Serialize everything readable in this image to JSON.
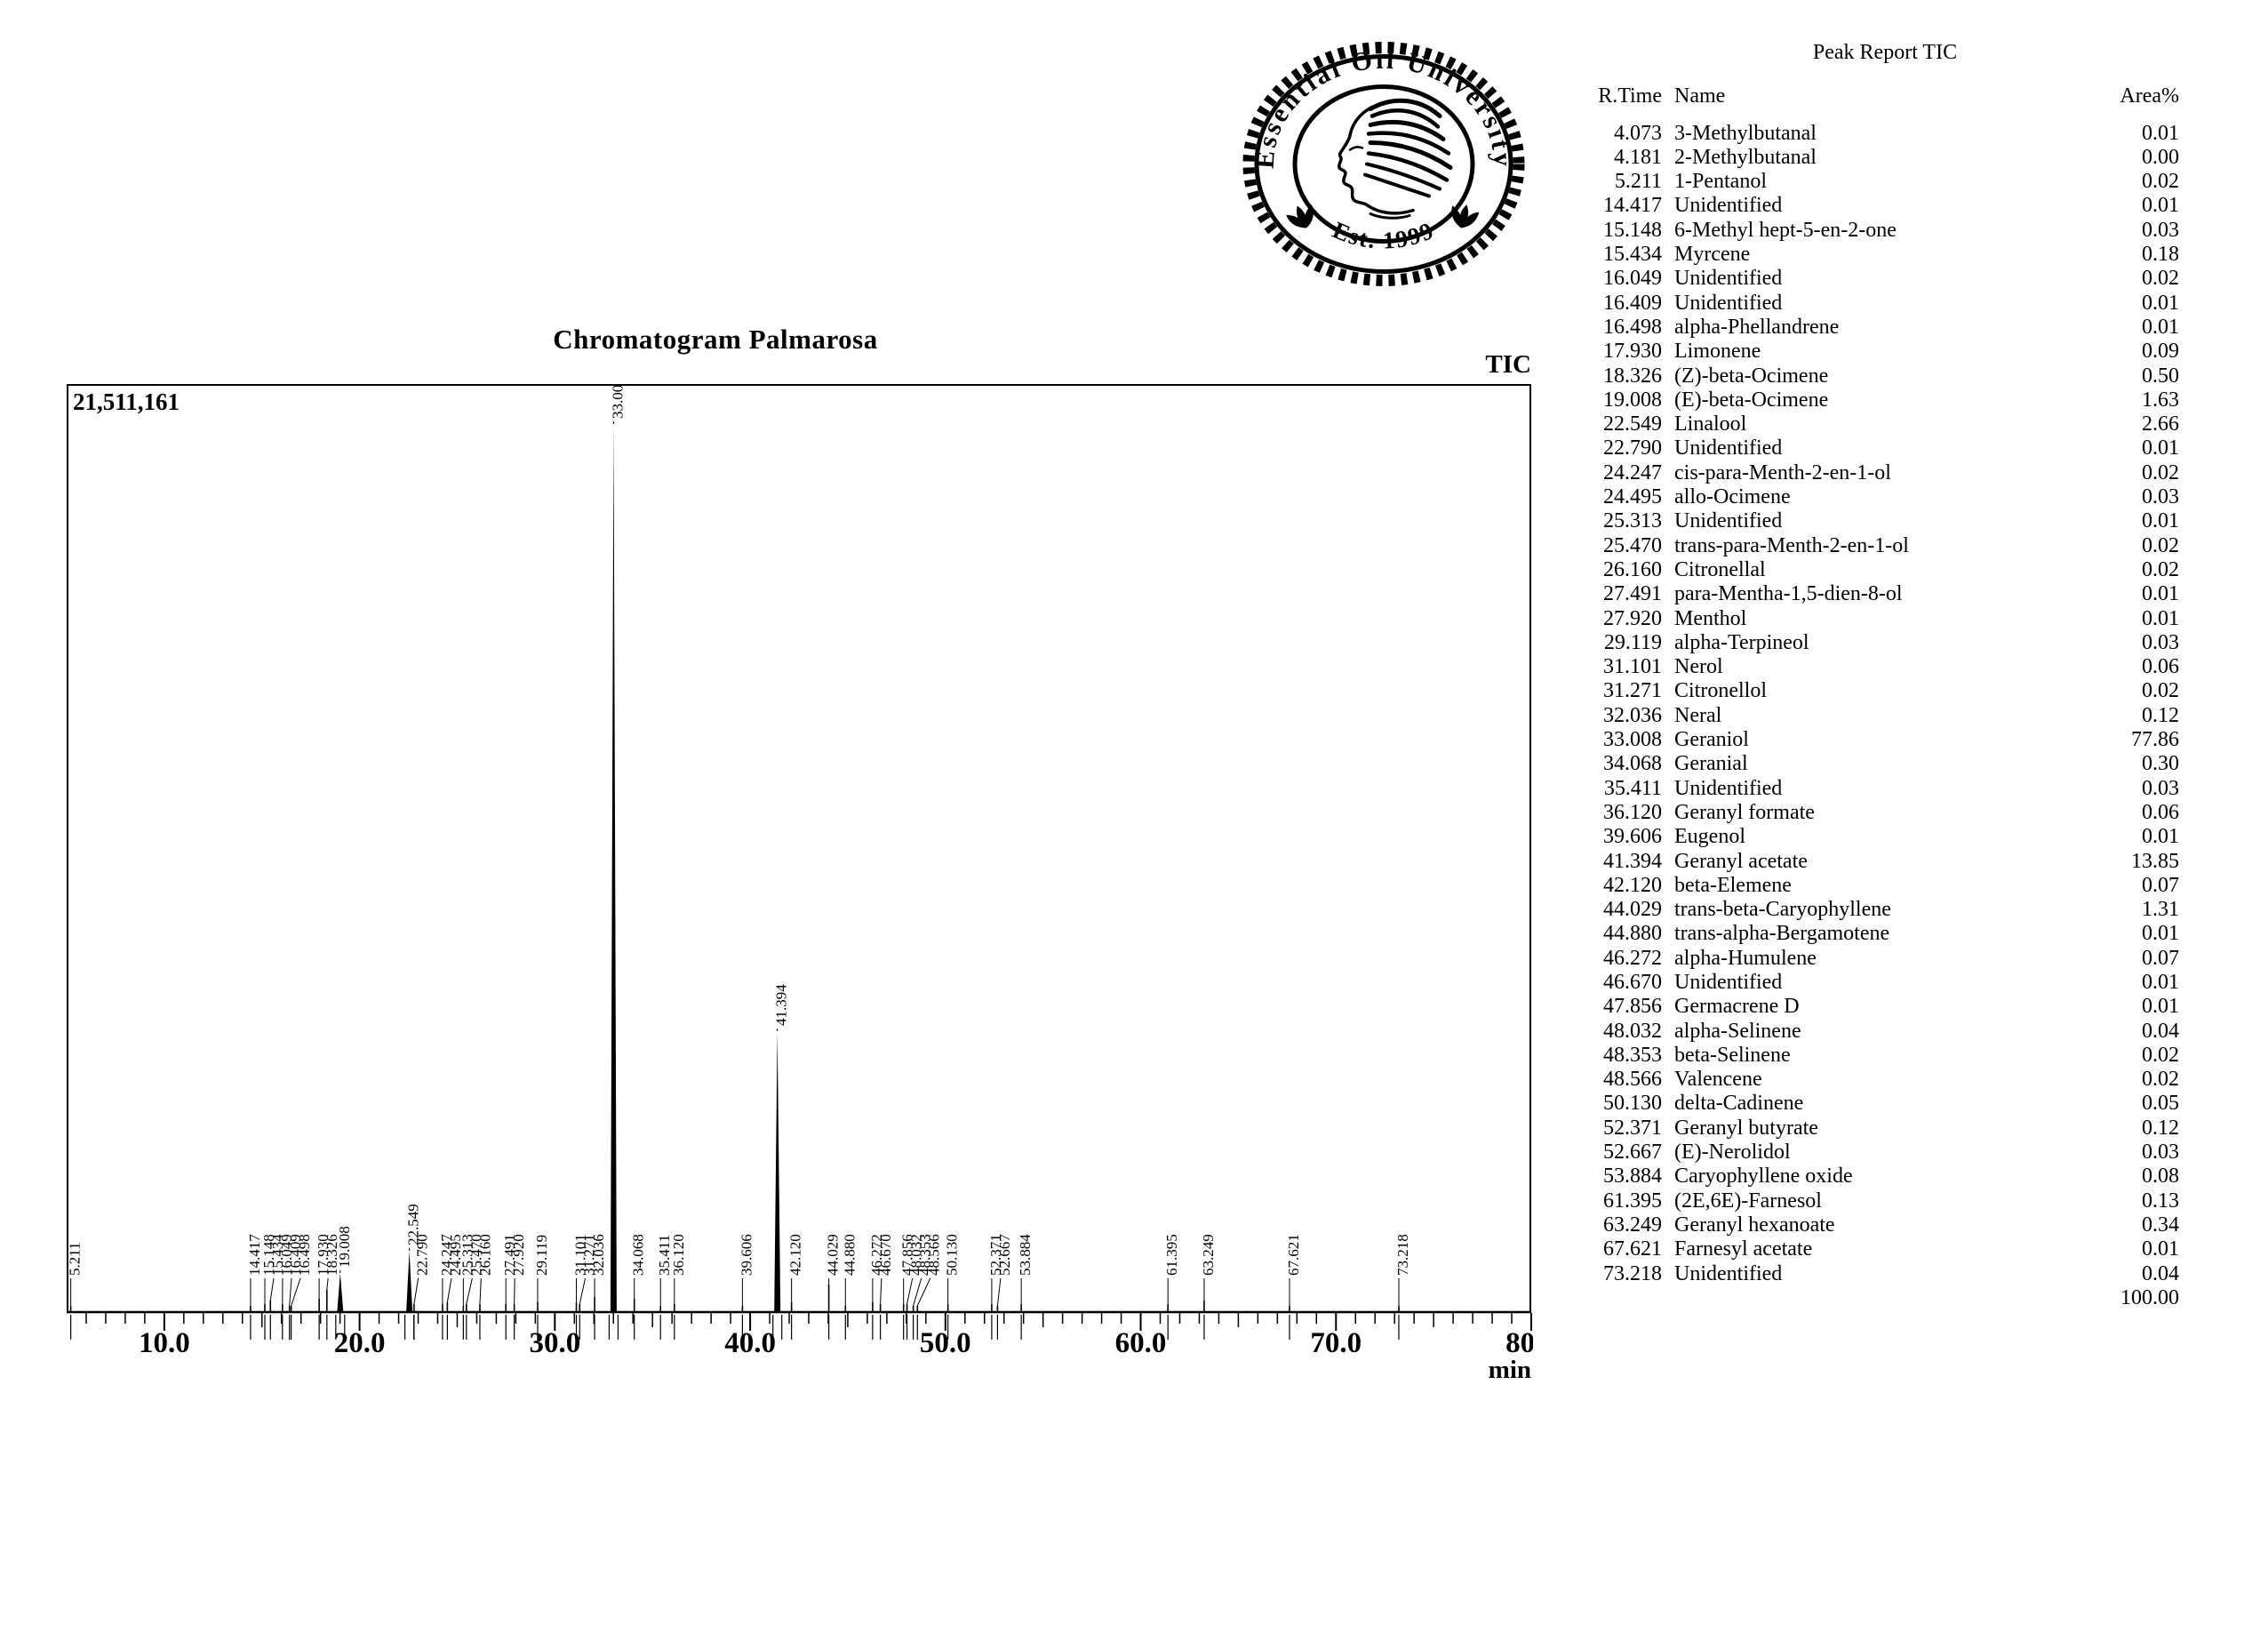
{
  "logo": {
    "arc_text": "Essential Oil University",
    "est_text": "Est. 1999"
  },
  "chart_data": {
    "type": "line",
    "title": "Chromatogram Palmarosa",
    "signal_label": "TIC",
    "y_max_label": "21,511,161",
    "xlabel": "min",
    "x_range_min": [
      5,
      80
    ],
    "x_major_tick_labels": [
      "10.0",
      "20.0",
      "30.0",
      "40.0",
      "50.0",
      "60.0",
      "70.0",
      "80.0"
    ],
    "grid": false,
    "full_scale_height_frac": 1.0,
    "peaks": [
      {
        "rt": "4.073",
        "name": "3-Methylbutanal",
        "area": "0.01",
        "hf": 0.008
      },
      {
        "rt": "4.181",
        "name": "2-Methylbutanal",
        "area": "0.00",
        "hf": 0.008
      },
      {
        "rt": "5.211",
        "name": "1-Pentanol",
        "area": "0.02",
        "hf": 0.008
      },
      {
        "rt": "14.417",
        "name": "Unidentified",
        "area": "0.01",
        "hf": 0.008
      },
      {
        "rt": "15.148",
        "name": "6-Methyl hept-5-en-2-one",
        "area": "0.03",
        "hf": 0.01
      },
      {
        "rt": "15.434",
        "name": "Myrcene",
        "area": "0.18",
        "hf": 0.014
      },
      {
        "rt": "16.049",
        "name": "Unidentified",
        "area": "0.02",
        "hf": 0.01
      },
      {
        "rt": "16.409",
        "name": "Unidentified",
        "area": "0.01",
        "hf": 0.008
      },
      {
        "rt": "16.498",
        "name": "alpha-Phellandrene",
        "area": "0.01",
        "hf": 0.008
      },
      {
        "rt": "17.930",
        "name": "Limonene",
        "area": "0.09",
        "hf": 0.016
      },
      {
        "rt": "18.326",
        "name": "(Z)-beta-Ocimene",
        "area": "0.50",
        "hf": 0.026
      },
      {
        "rt": "19.008",
        "name": "(E)-beta-Ocimene",
        "area": "1.63",
        "hf": 0.045
      },
      {
        "rt": "22.549",
        "name": "Linalool",
        "area": "2.66",
        "hf": 0.07
      },
      {
        "rt": "22.790",
        "name": "Unidentified",
        "area": "0.01",
        "hf": 0.01
      },
      {
        "rt": "24.247",
        "name": "cis-para-Menth-2-en-1-ol",
        "area": "0.02",
        "hf": 0.01
      },
      {
        "rt": "24.495",
        "name": "allo-Ocimene",
        "area": "0.03",
        "hf": 0.012
      },
      {
        "rt": "25.313",
        "name": "Unidentified",
        "area": "0.01",
        "hf": 0.008
      },
      {
        "rt": "25.470",
        "name": "trans-para-Menth-2-en-1-ol",
        "area": "0.02",
        "hf": 0.01
      },
      {
        "rt": "26.160",
        "name": "Citronellal",
        "area": "0.02",
        "hf": 0.01
      },
      {
        "rt": "27.491",
        "name": "para-Mentha-1,5-dien-8-ol",
        "area": "0.01",
        "hf": 0.01
      },
      {
        "rt": "27.920",
        "name": "Menthol",
        "area": "0.01",
        "hf": 0.01
      },
      {
        "rt": "29.119",
        "name": "alpha-Terpineol",
        "area": "0.03",
        "hf": 0.012
      },
      {
        "rt": "31.101",
        "name": "Nerol",
        "area": "0.06",
        "hf": 0.012
      },
      {
        "rt": "31.271",
        "name": "Citronellol",
        "area": "0.02",
        "hf": 0.01
      },
      {
        "rt": "32.036",
        "name": "Neral",
        "area": "0.12",
        "hf": 0.018
      },
      {
        "rt": "33.008",
        "name": "Geraniol",
        "area": "77.86",
        "hf": 1.0
      },
      {
        "rt": "34.068",
        "name": "Geranial",
        "area": "0.30",
        "hf": 0.016
      },
      {
        "rt": "35.411",
        "name": "Unidentified",
        "area": "0.03",
        "hf": 0.008
      },
      {
        "rt": "36.120",
        "name": "Geranyl formate",
        "area": "0.06",
        "hf": 0.01
      },
      {
        "rt": "39.606",
        "name": "Eugenol",
        "area": "0.01",
        "hf": 0.008
      },
      {
        "rt": "41.394",
        "name": "Geranyl acetate",
        "area": "13.85",
        "hf": 0.317
      },
      {
        "rt": "42.120",
        "name": "beta-Elemene",
        "area": "0.07",
        "hf": 0.012
      },
      {
        "rt": "44.029",
        "name": "trans-beta-Caryophyllene",
        "area": "1.31",
        "hf": 0.032
      },
      {
        "rt": "44.880",
        "name": "trans-alpha-Bergamotene",
        "area": "0.01",
        "hf": 0.008
      },
      {
        "rt": "46.272",
        "name": "alpha-Humulene",
        "area": "0.07",
        "hf": 0.012
      },
      {
        "rt": "46.670",
        "name": "Unidentified",
        "area": "0.01",
        "hf": 0.01
      },
      {
        "rt": "47.856",
        "name": "Germacrene D",
        "area": "0.01",
        "hf": 0.01
      },
      {
        "rt": "48.032",
        "name": "alpha-Selinene",
        "area": "0.04",
        "hf": 0.01
      },
      {
        "rt": "48.353",
        "name": "beta-Selinene",
        "area": "0.02",
        "hf": 0.008
      },
      {
        "rt": "48.566",
        "name": "Valencene",
        "area": "0.02",
        "hf": 0.008
      },
      {
        "rt": "50.130",
        "name": "delta-Cadinene",
        "area": "0.05",
        "hf": 0.01
      },
      {
        "rt": "52.371",
        "name": "Geranyl butyrate",
        "area": "0.12",
        "hf": 0.01
      },
      {
        "rt": "52.667",
        "name": "(E)-Nerolidol",
        "area": "0.03",
        "hf": 0.008
      },
      {
        "rt": "53.884",
        "name": "Caryophyllene oxide",
        "area": "0.08",
        "hf": 0.01
      },
      {
        "rt": "61.395",
        "name": "(2E,6E)-Farnesol",
        "area": "0.13",
        "hf": 0.01
      },
      {
        "rt": "63.249",
        "name": "Geranyl hexanoate",
        "area": "0.34",
        "hf": 0.014
      },
      {
        "rt": "67.621",
        "name": "Farnesyl acetate",
        "area": "0.01",
        "hf": 0.008
      },
      {
        "rt": "73.218",
        "name": "Unidentified",
        "area": "0.04",
        "hf": 0.008
      }
    ]
  },
  "peak_table": {
    "title": "Peak Report TIC",
    "columns": {
      "rtime": "R.Time",
      "name": "Name",
      "area": "Area%"
    },
    "total_area": "100.00"
  }
}
